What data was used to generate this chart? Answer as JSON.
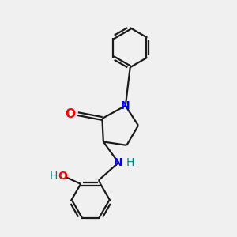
{
  "bg_color": "#f0f0f0",
  "bond_color": "#1a1a1a",
  "N_color": "#0000ff",
  "O_color": "#ff0000",
  "teal_color": "#008080",
  "line_width": 1.6,
  "figsize": [
    3.0,
    3.0
  ],
  "dpi": 100,
  "xlim": [
    0,
    10
  ],
  "ylim": [
    0,
    10
  ]
}
